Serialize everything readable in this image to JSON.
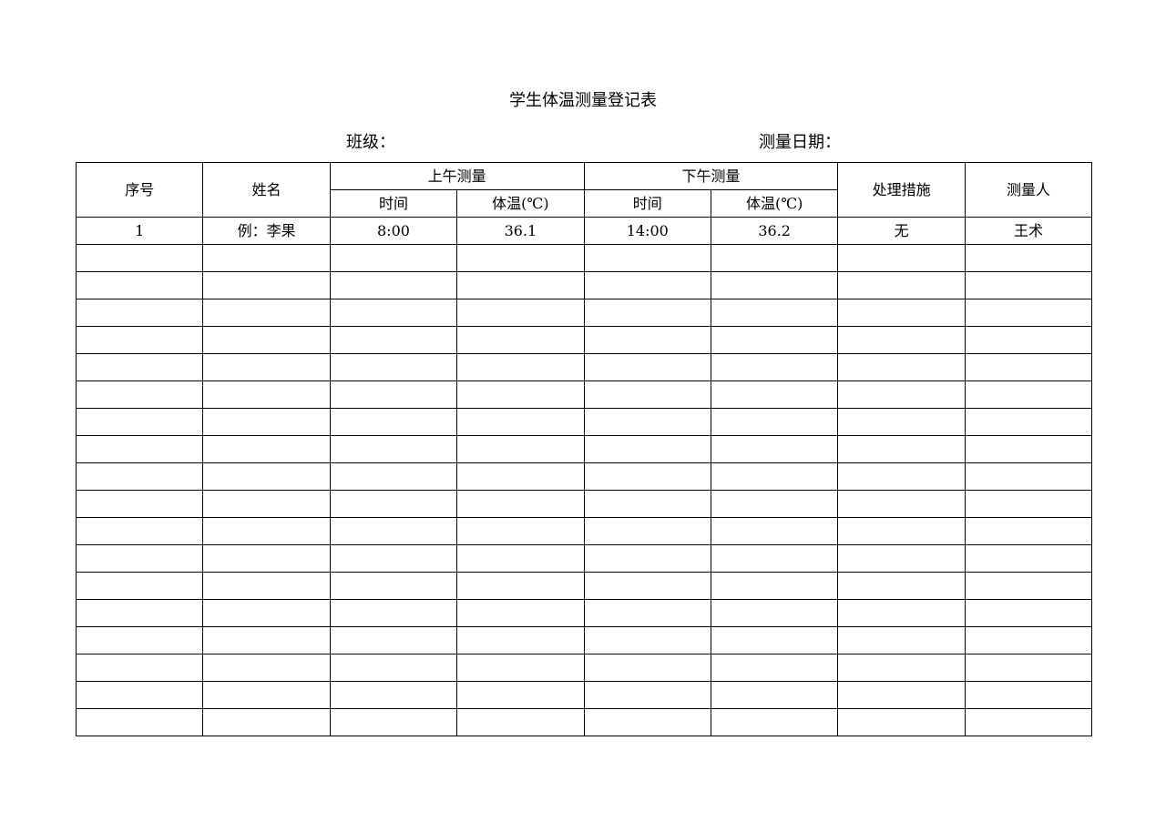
{
  "title": "学生体温测量登记表",
  "class_label": "班级：",
  "date_label": "测量日期：",
  "headers": {
    "seq": "序号",
    "name": "姓名",
    "morning": "上午测量",
    "afternoon": "下午测量",
    "time": "时间",
    "temp": "体温(℃)",
    "measures": "处理措施",
    "measurer": "测量人"
  },
  "rows": [
    [
      "1",
      "例：李果",
      "8:00",
      "36.1",
      "14:00",
      "36.2",
      "无",
      "王术"
    ],
    [
      "",
      "",
      "",
      "",
      "",
      "",
      "",
      ""
    ],
    [
      "",
      "",
      "",
      "",
      "",
      "",
      "",
      ""
    ],
    [
      "",
      "",
      "",
      "",
      "",
      "",
      "",
      ""
    ],
    [
      "",
      "",
      "",
      "",
      "",
      "",
      "",
      ""
    ],
    [
      "",
      "",
      "",
      "",
      "",
      "",
      "",
      ""
    ],
    [
      "",
      "",
      "",
      "",
      "",
      "",
      "",
      ""
    ],
    [
      "",
      "",
      "",
      "",
      "",
      "",
      "",
      ""
    ],
    [
      "",
      "",
      "",
      "",
      "",
      "",
      "",
      ""
    ],
    [
      "",
      "",
      "",
      "",
      "",
      "",
      "",
      ""
    ],
    [
      "",
      "",
      "",
      "",
      "",
      "",
      "",
      ""
    ],
    [
      "",
      "",
      "",
      "",
      "",
      "",
      "",
      ""
    ],
    [
      "",
      "",
      "",
      "",
      "",
      "",
      "",
      ""
    ],
    [
      "",
      "",
      "",
      "",
      "",
      "",
      "",
      ""
    ],
    [
      "",
      "",
      "",
      "",
      "",
      "",
      "",
      ""
    ],
    [
      "",
      "",
      "",
      "",
      "",
      "",
      "",
      ""
    ],
    [
      "",
      "",
      "",
      "",
      "",
      "",
      "",
      ""
    ],
    [
      "",
      "",
      "",
      "",
      "",
      "",
      "",
      ""
    ],
    [
      "",
      "",
      "",
      "",
      "",
      "",
      "",
      ""
    ]
  ]
}
